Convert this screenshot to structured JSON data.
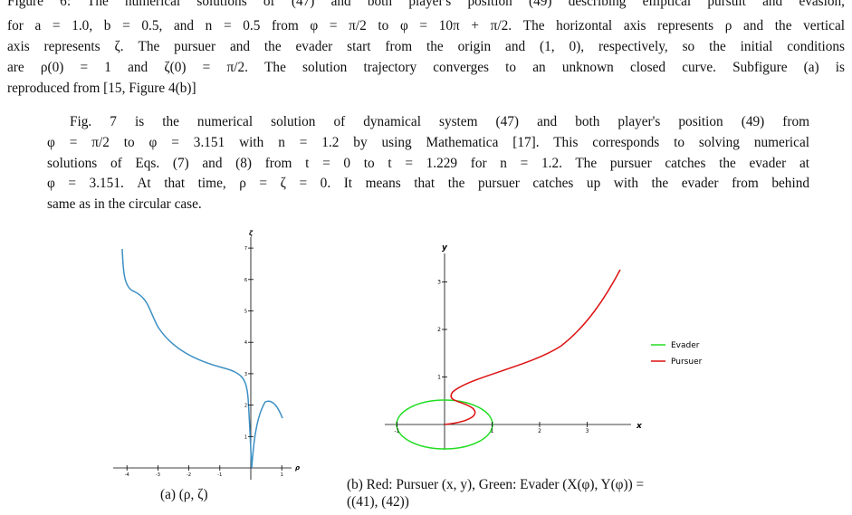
{
  "caption_top": {
    "lines": [
      "Figure 6: The numerical solutions of (47) and both player's position (49) describing elliptical pursuit and evasion,",
      "for a = 1.0, b = 0.5, and n = 0.5 from φ = π/2 to φ = 10π + π/2. The horizontal axis represents ρ and the vertical",
      "axis represents ζ. The pursuer and the evader start from the origin and (1, 0), respectively, so the initial conditions",
      "are ρ(0) = 1 and ζ(0) = π/2. The solution trajectory converges to an unknown closed curve. Subfigure (a) is",
      "reproduced from [15, Figure 4(b)]"
    ]
  },
  "paragraph": {
    "lines": [
      "Fig. 7 is the numerical solution of dynamical system (47) and both player's position (49) from",
      "φ = π/2 to φ = 3.151 with n = 1.2 by using Mathematica [17]. This corresponds to solving numerical",
      "solutions of Eqs. (7) and (8) from t = 0 to t = 1.229 for n = 1.2. The pursuer catches the evader at",
      "φ = 3.151. At that time, ρ = ζ = 0. It means that the pursuer catches up with the evader from behind",
      "same as in the circular case."
    ]
  },
  "figure_a": {
    "x_label": "ρ",
    "y_label": "ζ",
    "xticks": [
      -4,
      -3,
      -2,
      -1,
      1
    ],
    "yticks": [
      1,
      2,
      3,
      4,
      5,
      6,
      7
    ],
    "caption": "(a) (ρ, ζ)"
  },
  "figure_b": {
    "x_label": "x",
    "y_label": "y",
    "xticks": [
      -1,
      1,
      2,
      3
    ],
    "yticks": [
      1,
      2,
      3
    ],
    "legend": [
      "Evader",
      "Pursuer"
    ],
    "caption_lines": [
      "(b) Red: Pursuer (x, y), Green: Evader (X(φ), Y(φ)) =",
      "((41), (42))"
    ]
  }
}
